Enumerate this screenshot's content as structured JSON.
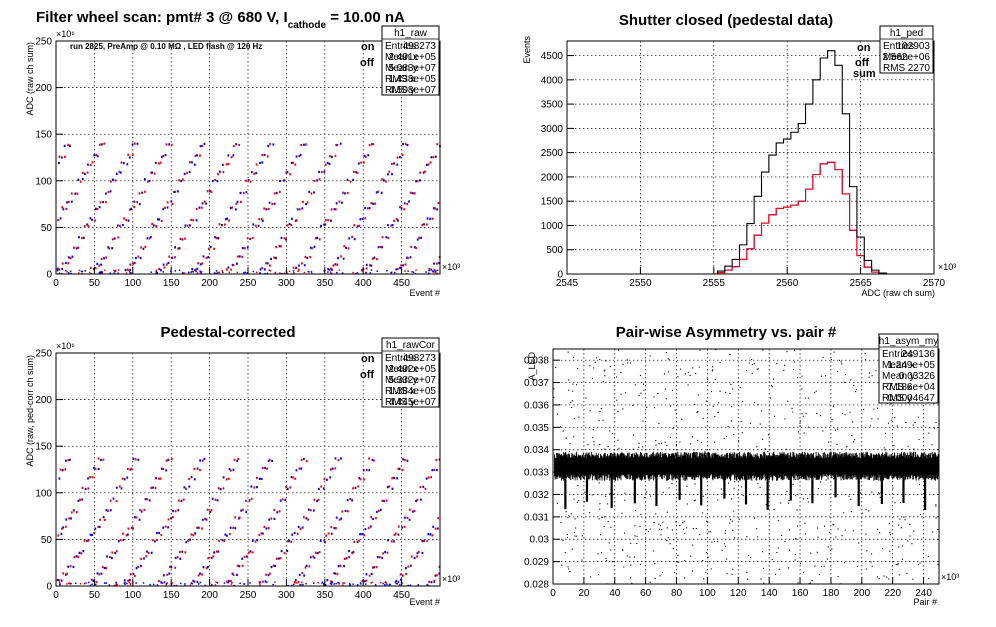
{
  "chart_data": [
    {
      "type": "scatter",
      "title": "Filter wheel scan: pmt#   3 @   680 V, I",
      "title_sub": "cathode",
      "title_tail": " = 10.00 nA",
      "annotation": "run 2825, PreAmp @ 0.10 MΩ , LED flash @  120 Hz",
      "xlabel": "Event #",
      "ylabel": "ADC (raw ch sum)",
      "x_multiplier": "×10³",
      "y_multiplier": "×10⁶",
      "xlim": [
        0,
        500
      ],
      "ylim": [
        0,
        250
      ],
      "xticks": [
        0,
        50,
        100,
        150,
        200,
        250,
        300,
        350,
        400,
        450
      ],
      "yticks": [
        0,
        50,
        100,
        150,
        200,
        250
      ],
      "legend": [
        {
          "label": "on",
          "color": "#0000ff"
        },
        {
          "label": "off",
          "color": "#ff0000"
        }
      ],
      "stats": {
        "name": "h1_raw",
        "rows": [
          [
            "Entries",
            "498273"
          ],
          [
            "Mean x",
            "2.491e+05"
          ],
          [
            "Mean y",
            "5.083e+07"
          ],
          [
            "RMS x",
            "1.438e+05"
          ],
          [
            "RMS y",
            "4.508e+07"
          ]
        ]
      },
      "levels": [
        5,
        10,
        17,
        28,
        38,
        52,
        58,
        70,
        76,
        87,
        100,
        108,
        118,
        126,
        138
      ],
      "period": 44
    },
    {
      "type": "line",
      "title": "Shutter closed (pedestal data)",
      "xlabel": "ADC (raw ch sum)",
      "ylabel": "Events",
      "x_multiplier": "×10³",
      "xlim": [
        2545,
        2570
      ],
      "ylim": [
        0,
        4800
      ],
      "xticks": [
        2545,
        2550,
        2555,
        2560,
        2565,
        2570
      ],
      "yticks": [
        0,
        500,
        1000,
        1500,
        2000,
        2500,
        3000,
        3500,
        4000,
        4500
      ],
      "legend": [
        {
          "label": "on",
          "color": "#0000ff"
        },
        {
          "label": "off",
          "color": "#ff0000"
        },
        {
          "label": "sum",
          "color": "#000000"
        }
      ],
      "stats": {
        "name": "h1_ped",
        "rows": [
          [
            "Entries",
            "102903"
          ],
          [
            "Mean",
            "2.562e+06"
          ],
          [
            "RMS",
            "2270"
          ]
        ]
      },
      "x": [
        2555.5,
        2556,
        2556.5,
        2557,
        2557.5,
        2558,
        2558.5,
        2559,
        2559.5,
        2560,
        2560.5,
        2561,
        2561.5,
        2562,
        2562.5,
        2563,
        2563.5,
        2564,
        2564.5,
        2565,
        2565.5,
        2566,
        2566.5
      ],
      "series": [
        {
          "name": "on",
          "color": "#0000ff",
          "values": [
            30,
            80,
            150,
            300,
            520,
            800,
            1050,
            1220,
            1350,
            1380,
            1420,
            1500,
            1750,
            2050,
            2270,
            2300,
            2150,
            1650,
            900,
            380,
            140,
            40,
            10
          ]
        },
        {
          "name": "off",
          "color": "#ff0000",
          "values": [
            30,
            80,
            150,
            300,
            520,
            800,
            1050,
            1220,
            1350,
            1380,
            1420,
            1500,
            1750,
            2050,
            2270,
            2300,
            2150,
            1650,
            900,
            380,
            140,
            40,
            10
          ]
        },
        {
          "name": "sum",
          "color": "#000000",
          "values": [
            60,
            160,
            300,
            600,
            1040,
            1600,
            2100,
            2450,
            2700,
            2780,
            2920,
            3100,
            3500,
            4000,
            4450,
            4600,
            4300,
            3300,
            1800,
            760,
            280,
            80,
            20
          ]
        }
      ]
    },
    {
      "type": "scatter",
      "title": "Pedestal-corrected",
      "xlabel": "Event #",
      "ylabel": "ADC (raw, ped-corr ch sum)",
      "x_multiplier": "×10³",
      "y_multiplier": "×10⁶",
      "xlim": [
        0,
        500
      ],
      "ylim": [
        0,
        250
      ],
      "xticks": [
        0,
        50,
        100,
        150,
        200,
        250,
        300,
        350,
        400,
        450
      ],
      "yticks": [
        0,
        50,
        100,
        150,
        200,
        250
      ],
      "legend": [
        {
          "label": "on",
          "color": "#0000ff"
        },
        {
          "label": "off",
          "color": "#ff0000"
        }
      ],
      "stats": {
        "name": "h1_rawCor",
        "rows": [
          [
            "Entries",
            "498273"
          ],
          [
            "Mean x",
            "2.492e+05"
          ],
          [
            "Mean y",
            "5.332e+07"
          ],
          [
            "RMS x",
            "1.384e+05"
          ],
          [
            "RMS y",
            "4.445e+07"
          ]
        ]
      },
      "levels": [
        5,
        12,
        20,
        30,
        36,
        48,
        55,
        62,
        72,
        80,
        92,
        105,
        115,
        125,
        135
      ],
      "period": 44
    },
    {
      "type": "scatter",
      "title": "Pair-wise Asymmetry vs. pair #",
      "xlabel": "Pair #",
      "ylabel": "A_LED",
      "x_multiplier": "×10³",
      "xlim": [
        0,
        250
      ],
      "ylim": [
        0.028,
        0.0385
      ],
      "xticks": [
        0,
        20,
        40,
        60,
        80,
        100,
        120,
        140,
        160,
        180,
        200,
        220,
        240
      ],
      "yticks": [
        0.028,
        0.029,
        0.03,
        0.031,
        0.032,
        0.033,
        0.034,
        0.035,
        0.036,
        0.037,
        0.038
      ],
      "ytick_labels": [
        "0.028",
        "0.029",
        "0.03",
        "0.031",
        "0.032",
        "0.033",
        "0.034",
        "0.035",
        "0.036",
        "0.037",
        "0.038"
      ],
      "stats": {
        "name": "h1_asym_my",
        "rows": [
          [
            "Entries",
            "249136"
          ],
          [
            "Mean x",
            "1.249e+05"
          ],
          [
            "Mean y",
            "0.03326"
          ],
          [
            "RMS x",
            "7.186e+04"
          ],
          [
            "RMS y",
            "0.0004647"
          ]
        ]
      },
      "band_center": 0.03326,
      "band_halfwidth": 0.0005,
      "dips_x": [
        8,
        22,
        38,
        53,
        67,
        82,
        96,
        111,
        125,
        139,
        154,
        168,
        183,
        198,
        213,
        227,
        241
      ],
      "dip_min": 0.0313
    }
  ]
}
